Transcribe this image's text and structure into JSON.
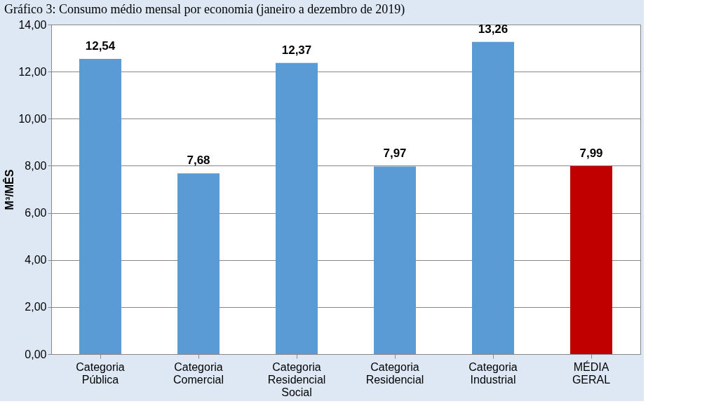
{
  "chart_data": {
    "type": "bar",
    "title": "Gráfico 3: Consumo médio mensal por economia (janeiro a dezembro de 2019)",
    "ylabel": "M³/MÊS",
    "categories": [
      "Categoria Pública",
      "Categoria Comercial",
      "Categoria Residencial Social",
      "Categoria Residencial",
      "Categoria Industrial",
      "MÉDIA GERAL"
    ],
    "values": [
      12.54,
      7.68,
      12.37,
      7.97,
      13.26,
      7.99
    ],
    "colors": [
      "#5b9bd5",
      "#5b9bd5",
      "#5b9bd5",
      "#5b9bd5",
      "#5b9bd5",
      "#c00000"
    ],
    "value_labels": [
      "12,54",
      "7,68",
      "12,37",
      "7,97",
      "13,26",
      "7,99"
    ],
    "ylim": [
      0,
      14
    ],
    "yticks": [
      {
        "value": 0,
        "label": "0,00"
      },
      {
        "value": 2,
        "label": "2,00"
      },
      {
        "value": 4,
        "label": "4,00"
      },
      {
        "value": 6,
        "label": "6,00"
      },
      {
        "value": 8,
        "label": "8,00"
      },
      {
        "value": 10,
        "label": "10,00"
      },
      {
        "value": 12,
        "label": "12,00"
      },
      {
        "value": 14,
        "label": "14,00"
      }
    ],
    "grid": "y"
  }
}
